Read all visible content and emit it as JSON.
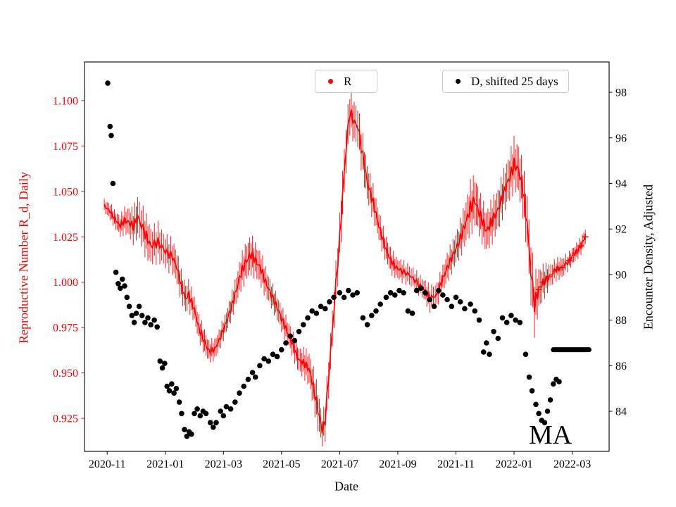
{
  "chart_data": {
    "type": "line",
    "title": "",
    "xlabel": "Date",
    "annotation": "MA",
    "x_unit": "months since 2020-11-01",
    "x_ticks": [
      "2020-11",
      "2021-01",
      "2021-03",
      "2021-05",
      "2021-07",
      "2021-09",
      "2021-11",
      "2022-01",
      "2022-03"
    ],
    "x_tick_positions": [
      0,
      2,
      4,
      6,
      8,
      10,
      12,
      14,
      16
    ],
    "xlim": [
      -0.78,
      17.27
    ],
    "left_axis": {
      "label": "Reproductive Number R_d, Daily",
      "color": "#ff0000",
      "ticks": [
        "0.925",
        "0.950",
        "0.975",
        "1.000",
        "1.025",
        "1.050",
        "1.075",
        "1.100"
      ],
      "lim": [
        0.9068,
        1.1213
      ]
    },
    "right_axis": {
      "label": "Encounter Density, Adjusted",
      "color": "#000000",
      "ticks": [
        "84",
        "86",
        "88",
        "90",
        "92",
        "94",
        "96",
        "98"
      ],
      "lim": [
        82.24,
        99.33
      ]
    },
    "series": [
      {
        "name": "R",
        "axis": "left",
        "type": "errorbar-line",
        "color": "#ff0000",
        "plus_marker_from": 14.8,
        "points": [
          [
            -0.1,
            1.042,
            0.003
          ],
          [
            0.1,
            1.039,
            0.004
          ],
          [
            0.25,
            1.035,
            0.004
          ],
          [
            0.45,
            1.031,
            0.005
          ],
          [
            0.6,
            1.034,
            0.006
          ],
          [
            0.75,
            1.033,
            0.007
          ],
          [
            0.9,
            1.031,
            0.008
          ],
          [
            1.05,
            1.036,
            0.01
          ],
          [
            1.3,
            1.027,
            0.01
          ],
          [
            1.5,
            1.02,
            0.009
          ],
          [
            1.75,
            1.022,
            0.009
          ],
          [
            2.0,
            1.017,
            0.008
          ],
          [
            2.25,
            1.014,
            0.008
          ],
          [
            2.4,
            1.008,
            0.008
          ],
          [
            2.55,
            0.998,
            0.007
          ],
          [
            2.7,
            0.991,
            0.007
          ],
          [
            2.8,
            0.993,
            0.007
          ],
          [
            3.0,
            0.985,
            0.006
          ],
          [
            3.15,
            0.975,
            0.006
          ],
          [
            3.35,
            0.967,
            0.006
          ],
          [
            3.5,
            0.962,
            0.005
          ],
          [
            3.7,
            0.963,
            0.005
          ],
          [
            3.85,
            0.968,
            0.005
          ],
          [
            4.05,
            0.976,
            0.005
          ],
          [
            4.25,
            0.985,
            0.006
          ],
          [
            4.45,
            0.996,
            0.007
          ],
          [
            4.6,
            1.005,
            0.008
          ],
          [
            4.8,
            1.012,
            0.009
          ],
          [
            4.95,
            1.015,
            0.009
          ],
          [
            5.1,
            1.012,
            0.008
          ],
          [
            5.3,
            1.007,
            0.008
          ],
          [
            5.45,
            1.0,
            0.007
          ],
          [
            5.65,
            0.993,
            0.006
          ],
          [
            5.85,
            0.986,
            0.006
          ],
          [
            6.05,
            0.978,
            0.006
          ],
          [
            6.25,
            0.971,
            0.006
          ],
          [
            6.45,
            0.963,
            0.006
          ],
          [
            6.6,
            0.957,
            0.006
          ],
          [
            6.8,
            0.955,
            0.007
          ],
          [
            6.95,
            0.952,
            0.008
          ],
          [
            7.1,
            0.942,
            0.009
          ],
          [
            7.25,
            0.93,
            0.01
          ],
          [
            7.4,
            0.918,
            0.007
          ],
          [
            7.5,
            0.924,
            0.009
          ],
          [
            7.62,
            0.948,
            0.01
          ],
          [
            7.75,
            0.974,
            0.01
          ],
          [
            7.87,
            0.999,
            0.01
          ],
          [
            8.0,
            1.024,
            0.011
          ],
          [
            8.1,
            1.048,
            0.012
          ],
          [
            8.22,
            1.074,
            0.012
          ],
          [
            8.35,
            1.094,
            0.01
          ],
          [
            8.5,
            1.088,
            0.01
          ],
          [
            8.62,
            1.086,
            0.01
          ],
          [
            8.8,
            1.069,
            0.01
          ],
          [
            8.95,
            1.055,
            0.009
          ],
          [
            9.15,
            1.044,
            0.008
          ],
          [
            9.35,
            1.031,
            0.007
          ],
          [
            9.55,
            1.02,
            0.006
          ],
          [
            9.75,
            1.012,
            0.006
          ],
          [
            9.95,
            1.008,
            0.005
          ],
          [
            10.15,
            1.006,
            0.005
          ],
          [
            10.4,
            1.004,
            0.005
          ],
          [
            10.65,
            1.0,
            0.005
          ],
          [
            10.9,
            0.996,
            0.005
          ],
          [
            11.1,
            0.991,
            0.006
          ],
          [
            11.35,
            0.993,
            0.006
          ],
          [
            11.5,
            1.0,
            0.006
          ],
          [
            11.7,
            1.008,
            0.007
          ],
          [
            11.9,
            1.015,
            0.007
          ],
          [
            12.1,
            1.022,
            0.008
          ],
          [
            12.3,
            1.031,
            0.01
          ],
          [
            12.5,
            1.041,
            0.012
          ],
          [
            12.65,
            1.045,
            0.012
          ],
          [
            12.85,
            1.036,
            0.01
          ],
          [
            13.05,
            1.028,
            0.01
          ],
          [
            13.25,
            1.034,
            0.01
          ],
          [
            13.45,
            1.04,
            0.01
          ],
          [
            13.65,
            1.05,
            0.01
          ],
          [
            13.85,
            1.058,
            0.011
          ],
          [
            14.0,
            1.065,
            0.012
          ],
          [
            14.15,
            1.062,
            0.012
          ],
          [
            14.3,
            1.051,
            0.012
          ],
          [
            14.45,
            1.032,
            0.014
          ],
          [
            14.58,
            1.006,
            0.016
          ],
          [
            14.7,
            0.988,
            0.014
          ],
          [
            14.85,
            0.996,
            0.01
          ],
          [
            15.0,
            1.0,
            0.008
          ],
          [
            15.2,
            1.003,
            0.006
          ],
          [
            15.45,
            1.007,
            0.005
          ],
          [
            15.65,
            1.008,
            0.005
          ],
          [
            15.9,
            1.012,
            0.004
          ],
          [
            16.1,
            1.016,
            0.004
          ],
          [
            16.3,
            1.02,
            0.004
          ],
          [
            16.45,
            1.025,
            0.004
          ]
        ]
      },
      {
        "name": "D, shifted 25 days",
        "axis": "right",
        "type": "scatter",
        "color": "#000000",
        "points": [
          [
            0.02,
            98.4
          ],
          [
            0.1,
            96.5
          ],
          [
            0.14,
            96.1
          ],
          [
            0.2,
            94.0
          ],
          [
            0.3,
            90.1
          ],
          [
            0.38,
            89.6
          ],
          [
            0.45,
            89.4
          ],
          [
            0.52,
            89.8
          ],
          [
            0.6,
            89.5
          ],
          [
            0.68,
            89.0
          ],
          [
            0.76,
            88.6
          ],
          [
            0.85,
            88.2
          ],
          [
            0.93,
            87.9
          ],
          [
            1.0,
            88.3
          ],
          [
            1.1,
            88.6
          ],
          [
            1.2,
            88.2
          ],
          [
            1.3,
            87.9
          ],
          [
            1.4,
            88.1
          ],
          [
            1.5,
            87.8
          ],
          [
            1.62,
            88.0
          ],
          [
            1.72,
            87.7
          ],
          [
            1.82,
            86.2
          ],
          [
            1.9,
            85.9
          ],
          [
            1.98,
            86.1
          ],
          [
            2.06,
            85.1
          ],
          [
            2.14,
            84.9
          ],
          [
            2.22,
            85.2
          ],
          [
            2.3,
            84.8
          ],
          [
            2.38,
            85.0
          ],
          [
            2.48,
            84.4
          ],
          [
            2.56,
            83.9
          ],
          [
            2.66,
            83.2
          ],
          [
            2.74,
            82.9
          ],
          [
            2.82,
            83.1
          ],
          [
            2.9,
            83.0
          ],
          [
            3.0,
            83.9
          ],
          [
            3.1,
            84.1
          ],
          [
            3.2,
            83.8
          ],
          [
            3.3,
            84.0
          ],
          [
            3.4,
            83.9
          ],
          [
            3.55,
            83.5
          ],
          [
            3.65,
            83.3
          ],
          [
            3.75,
            83.5
          ],
          [
            3.9,
            84.0
          ],
          [
            4.0,
            83.8
          ],
          [
            4.1,
            84.2
          ],
          [
            4.25,
            84.1
          ],
          [
            4.4,
            84.4
          ],
          [
            4.55,
            84.8
          ],
          [
            4.7,
            85.1
          ],
          [
            4.85,
            85.4
          ],
          [
            5.0,
            85.7
          ],
          [
            5.1,
            85.5
          ],
          [
            5.25,
            86.0
          ],
          [
            5.4,
            86.3
          ],
          [
            5.55,
            86.2
          ],
          [
            5.7,
            86.5
          ],
          [
            5.85,
            86.4
          ],
          [
            6.0,
            86.7
          ],
          [
            6.15,
            87.0
          ],
          [
            6.3,
            87.3
          ],
          [
            6.45,
            87.1
          ],
          [
            6.6,
            87.5
          ],
          [
            6.75,
            87.8
          ],
          [
            6.9,
            88.1
          ],
          [
            7.05,
            88.4
          ],
          [
            7.2,
            88.3
          ],
          [
            7.35,
            88.6
          ],
          [
            7.5,
            88.5
          ],
          [
            7.65,
            88.8
          ],
          [
            7.8,
            89.0
          ],
          [
            8.0,
            89.2
          ],
          [
            8.15,
            89.0
          ],
          [
            8.3,
            89.3
          ],
          [
            8.45,
            89.1
          ],
          [
            8.6,
            89.2
          ],
          [
            8.8,
            88.1
          ],
          [
            8.95,
            87.8
          ],
          [
            9.1,
            88.2
          ],
          [
            9.25,
            88.4
          ],
          [
            9.4,
            88.7
          ],
          [
            9.6,
            89.0
          ],
          [
            9.75,
            89.2
          ],
          [
            9.9,
            89.1
          ],
          [
            10.05,
            89.3
          ],
          [
            10.2,
            89.2
          ],
          [
            10.35,
            88.4
          ],
          [
            10.5,
            88.3
          ],
          [
            10.65,
            89.3
          ],
          [
            10.8,
            89.4
          ],
          [
            10.95,
            89.2
          ],
          [
            11.1,
            88.9
          ],
          [
            11.25,
            88.6
          ],
          [
            11.4,
            89.3
          ],
          [
            11.55,
            89.1
          ],
          [
            11.7,
            88.9
          ],
          [
            11.85,
            88.6
          ],
          [
            12.0,
            89.0
          ],
          [
            12.15,
            88.8
          ],
          [
            12.3,
            88.5
          ],
          [
            12.5,
            88.7
          ],
          [
            12.65,
            88.4
          ],
          [
            12.8,
            88.0
          ],
          [
            12.95,
            86.6
          ],
          [
            13.05,
            87.0
          ],
          [
            13.15,
            86.5
          ],
          [
            13.3,
            87.5
          ],
          [
            13.45,
            87.2
          ],
          [
            13.6,
            88.1
          ],
          [
            13.75,
            87.9
          ],
          [
            13.9,
            88.2
          ],
          [
            14.05,
            88.0
          ],
          [
            14.2,
            87.9
          ],
          [
            14.4,
            86.5
          ],
          [
            14.52,
            85.5
          ],
          [
            14.62,
            84.9
          ],
          [
            14.75,
            84.3
          ],
          [
            14.85,
            83.9
          ],
          [
            14.95,
            83.6
          ],
          [
            15.05,
            83.5
          ],
          [
            15.15,
            84.0
          ],
          [
            15.25,
            84.5
          ],
          [
            15.35,
            85.2
          ],
          [
            15.45,
            85.4
          ],
          [
            15.55,
            85.3
          ]
        ]
      },
      {
        "name": "D flat segment",
        "axis": "right",
        "type": "thick-line",
        "color": "#000000",
        "x0": 15.35,
        "x1": 16.58,
        "y": 86.7
      }
    ],
    "legend_position": "upper center, two boxes"
  }
}
